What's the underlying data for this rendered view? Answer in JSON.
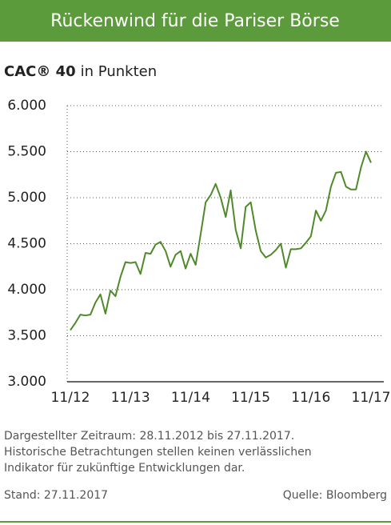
{
  "chart_data": {
    "type": "line",
    "title": "Rückenwind für die Pariser Börse",
    "subtitle_bold": "CAC® 40",
    "subtitle": "in Punkten",
    "x": [
      "11/12",
      "12/12",
      "01/13",
      "02/13",
      "03/13",
      "04/13",
      "05/13",
      "06/13",
      "07/13",
      "08/13",
      "09/13",
      "10/13",
      "11/13",
      "12/13",
      "01/14",
      "02/14",
      "03/14",
      "04/14",
      "05/14",
      "06/14",
      "07/14",
      "08/14",
      "09/14",
      "10/14",
      "11/14",
      "12/14",
      "01/15",
      "02/15",
      "03/15",
      "04/15",
      "05/15",
      "06/15",
      "07/15",
      "08/15",
      "09/15",
      "10/15",
      "11/15",
      "12/15",
      "01/16",
      "02/16",
      "03/16",
      "04/16",
      "05/16",
      "06/16",
      "07/16",
      "08/16",
      "09/16",
      "10/16",
      "11/16",
      "12/16",
      "01/17",
      "02/17",
      "03/17",
      "04/17",
      "05/17",
      "06/17",
      "07/17",
      "08/17",
      "09/17",
      "10/17",
      "11/17"
    ],
    "series": [
      {
        "name": "CAC® 40",
        "color": "#4f8a2a",
        "values": [
          3560,
          3640,
          3730,
          3720,
          3730,
          3860,
          3950,
          3740,
          3990,
          3930,
          4140,
          4300,
          4290,
          4300,
          4170,
          4400,
          4390,
          4490,
          4520,
          4420,
          4250,
          4380,
          4420,
          4230,
          4390,
          4270,
          4600,
          4950,
          5030,
          5150,
          5000,
          4790,
          5080,
          4650,
          4450,
          4900,
          4950,
          4640,
          4420,
          4350,
          4380,
          4430,
          4500,
          4240,
          4440,
          4440,
          4450,
          4510,
          4580,
          4860,
          4750,
          4860,
          5120,
          5270,
          5280,
          5120,
          5090,
          5090,
          5330,
          5500,
          5380
        ]
      }
    ],
    "xticks": [
      "11/12",
      "11/13",
      "11/14",
      "11/15",
      "11/16",
      "11/17"
    ],
    "ylim": [
      3000,
      6000
    ],
    "yticks": [
      {
        "value": 3000,
        "label": "3.000"
      },
      {
        "value": 3500,
        "label": "3.500"
      },
      {
        "value": 4000,
        "label": "4.000"
      },
      {
        "value": 4500,
        "label": "4.500"
      },
      {
        "value": 5000,
        "label": "5.000"
      },
      {
        "value": 5500,
        "label": "5.500"
      },
      {
        "value": 6000,
        "label": "6.000"
      }
    ],
    "grid": true,
    "notes": [
      "Dargestellter Zeitraum: 28.11.2012 bis 27.11.2017.",
      "Historische Betrachtungen stellen keinen verlässlichen",
      "Indikator für zukünftige Entwicklungen dar."
    ],
    "stand": "Stand: 27.11.2017",
    "source": "Quelle: Bloomberg"
  }
}
